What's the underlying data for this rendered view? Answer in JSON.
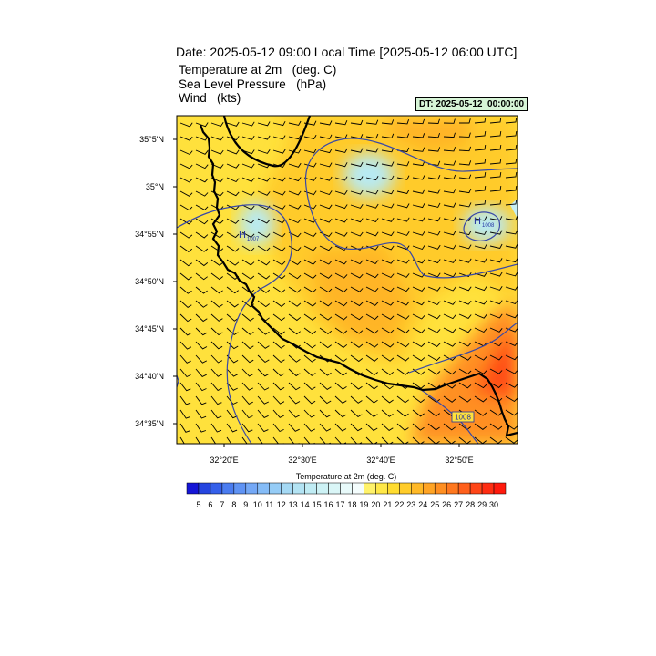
{
  "header": {
    "title": "Date: 2025-05-12  09:00 Local Time [2025-05-12  06:00 UTC]",
    "fields": [
      {
        "name": "Temperature at 2m",
        "unit": "(deg. C)"
      },
      {
        "name": "Sea Level Pressure",
        "unit": "(hPa)"
      },
      {
        "name": "Wind",
        "unit": "(kts)"
      }
    ],
    "dt_label": "DT: 2025-05-12_00:00:00"
  },
  "map": {
    "lat_labels": [
      "35°5'N",
      "35°N",
      "34°55'N",
      "34°50'N",
      "34°45'N",
      "34°40'N",
      "34°35'N"
    ],
    "lon_labels": [
      "32°20'E",
      "32°30'E",
      "32°40'E",
      "32°50'E"
    ],
    "pressure_labels": [
      {
        "text": "H",
        "sub": "1007"
      },
      {
        "text": "H",
        "sub": "1008"
      },
      {
        "text": "1008"
      }
    ]
  },
  "colorbar": {
    "title": "Temperature at 2m  (deg. C)",
    "ticks": [
      "5",
      "6",
      "7",
      "8",
      "9",
      "10",
      "11",
      "12",
      "13",
      "14",
      "15",
      "16",
      "17",
      "18",
      "19",
      "20",
      "21",
      "22",
      "23",
      "24",
      "25",
      "26",
      "27",
      "28",
      "29",
      "30"
    ],
    "colors": [
      "#1515d6",
      "#2545e0",
      "#3560ea",
      "#4a7cf0",
      "#5f93f4",
      "#74a8f6",
      "#85bcf7",
      "#95ccf6",
      "#a5d9f4",
      "#b3e3f3",
      "#c0ecf4",
      "#cdf2f5",
      "#daf6f7",
      "#e8fafa",
      "#f4fdfd",
      "#fff26a",
      "#ffe848",
      "#ffdc30",
      "#ffcc2a",
      "#ffb927",
      "#ffa425",
      "#ff8f22",
      "#ff781f",
      "#ff601c",
      "#ff4618",
      "#ff2d12",
      "#ff1a0d"
    ],
    "accent_contour": "#2f3fa0",
    "coast_color": "#000000"
  }
}
